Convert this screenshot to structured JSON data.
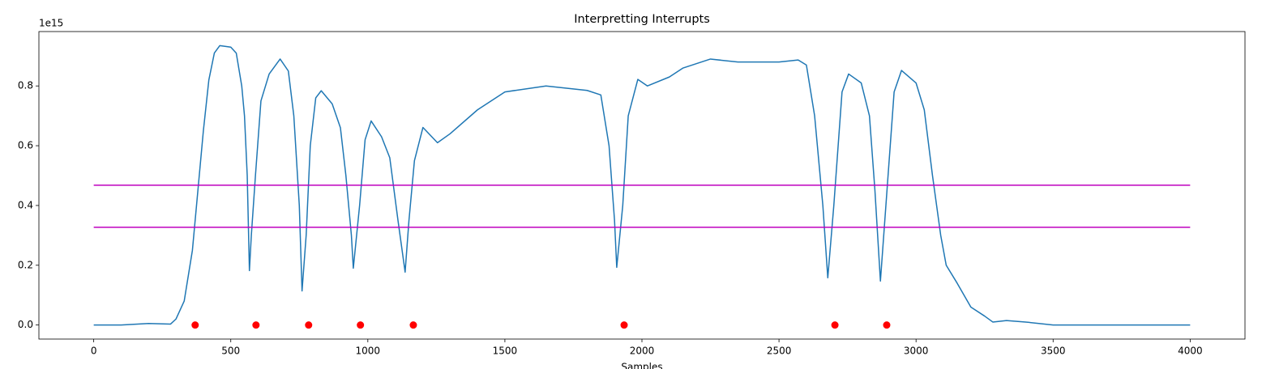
{
  "chart_data": {
    "type": "line",
    "title": "Interpretting Interrupts",
    "xlabel": "Samples",
    "y_offset_label": "1e15",
    "xlim": [
      -200,
      4200
    ],
    "ylim": [
      -0.047,
      0.982
    ],
    "xticks": [
      0,
      500,
      1000,
      1500,
      2000,
      2500,
      3000,
      3500,
      4000
    ],
    "yticks": [
      {
        "value": 0,
        "label": "0.0"
      },
      0.2,
      0.4,
      0.6,
      0.8
    ],
    "grid": false,
    "series": [
      {
        "type": "line",
        "color": "#1f77b4",
        "x": [
          0,
          100,
          200,
          280,
          300,
          330,
          360,
          380,
          400,
          420,
          440,
          460,
          500,
          520,
          540,
          550,
          560,
          568,
          575,
          590,
          610,
          640,
          680,
          710,
          730,
          750,
          760,
          775,
          790,
          810,
          830,
          870,
          900,
          920,
          940,
          947,
          970,
          990,
          1012,
          1050,
          1080,
          1110,
          1136,
          1150,
          1170,
          1201,
          1254,
          1300,
          1400,
          1500,
          1650,
          1800,
          1850,
          1880,
          1900,
          1908,
          1930,
          1950,
          1985,
          2020,
          2100,
          2150,
          2250,
          2350,
          2500,
          2570,
          2600,
          2630,
          2660,
          2678,
          2700,
          2730,
          2754,
          2800,
          2830,
          2850,
          2870,
          2890,
          2920,
          2947,
          3000,
          3030,
          3060,
          3090,
          3110,
          3150,
          3200,
          3250,
          3280,
          3330,
          3400,
          3500,
          3700,
          4000
        ],
        "values": [
          0,
          0,
          0.005,
          0.003,
          0.02,
          0.08,
          0.25,
          0.45,
          0.65,
          0.82,
          0.91,
          0.935,
          0.93,
          0.91,
          0.8,
          0.7,
          0.5,
          0.182,
          0.3,
          0.5,
          0.75,
          0.84,
          0.89,
          0.85,
          0.7,
          0.4,
          0.114,
          0.3,
          0.6,
          0.76,
          0.784,
          0.74,
          0.66,
          0.5,
          0.3,
          0.19,
          0.4,
          0.62,
          0.683,
          0.63,
          0.56,
          0.35,
          0.177,
          0.35,
          0.55,
          0.661,
          0.61,
          0.64,
          0.72,
          0.78,
          0.8,
          0.785,
          0.77,
          0.6,
          0.35,
          0.193,
          0.4,
          0.7,
          0.822,
          0.8,
          0.83,
          0.86,
          0.89,
          0.88,
          0.88,
          0.887,
          0.87,
          0.7,
          0.4,
          0.158,
          0.4,
          0.78,
          0.84,
          0.81,
          0.7,
          0.45,
          0.147,
          0.4,
          0.78,
          0.852,
          0.81,
          0.72,
          0.5,
          0.3,
          0.2,
          0.14,
          0.06,
          0.03,
          0.01,
          0.015,
          0.01,
          0,
          0,
          0
        ]
      },
      {
        "type": "line",
        "color": "#bf00bf",
        "x": [
          0,
          4000
        ],
        "values": [
          0.468,
          0.468
        ]
      },
      {
        "type": "line",
        "color": "#bf00bf",
        "x": [
          0,
          4000
        ],
        "values": [
          0.327,
          0.327
        ]
      },
      {
        "type": "scatter",
        "color": "#ff0000",
        "x": [
          370,
          592,
          784,
          973,
          1166,
          1935,
          2704,
          2893
        ],
        "values": [
          0,
          0,
          0,
          0,
          0,
          0,
          0,
          0
        ]
      }
    ]
  }
}
